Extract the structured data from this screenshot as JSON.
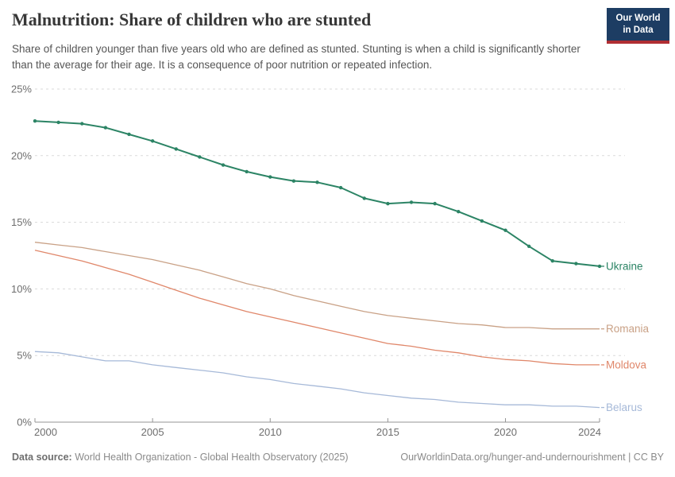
{
  "header": {
    "title": "Malnutrition: Share of children who are stunted",
    "subtitle": "Share of children younger than five years old who are defined as stunted. Stunting is when a child is significantly shorter than the average for their age. It is a consequence of poor nutrition or repeated infection.",
    "logo_line1": "Our World",
    "logo_line2": "in Data",
    "logo_bg_color": "#1d3d63",
    "logo_accent_color": "#b02e33"
  },
  "chart_data": {
    "type": "line",
    "x": [
      2000,
      2001,
      2002,
      2003,
      2004,
      2005,
      2006,
      2007,
      2008,
      2009,
      2010,
      2011,
      2012,
      2013,
      2014,
      2015,
      2016,
      2017,
      2018,
      2019,
      2020,
      2021,
      2022,
      2023,
      2024
    ],
    "series": [
      {
        "name": "Ukraine",
        "color": "#2c8465",
        "marker": true,
        "values": [
          22.6,
          22.5,
          22.4,
          22.1,
          21.6,
          21.1,
          20.5,
          19.9,
          19.3,
          18.8,
          18.4,
          18.1,
          18.0,
          17.6,
          16.8,
          16.4,
          16.5,
          16.4,
          15.8,
          15.1,
          14.4,
          13.2,
          12.1,
          11.9,
          11.7
        ]
      },
      {
        "name": "Romania",
        "color": "#c9a186",
        "marker": false,
        "values": [
          13.5,
          13.3,
          13.1,
          12.8,
          12.5,
          12.2,
          11.8,
          11.4,
          10.9,
          10.4,
          10.0,
          9.5,
          9.1,
          8.7,
          8.3,
          8.0,
          7.8,
          7.6,
          7.4,
          7.3,
          7.1,
          7.1,
          7.0,
          7.0,
          7.0
        ]
      },
      {
        "name": "Moldova",
        "color": "#e0876a",
        "marker": false,
        "values": [
          12.9,
          12.5,
          12.1,
          11.6,
          11.1,
          10.5,
          9.9,
          9.3,
          8.8,
          8.3,
          7.9,
          7.5,
          7.1,
          6.7,
          6.3,
          5.9,
          5.7,
          5.4,
          5.2,
          4.9,
          4.7,
          4.6,
          4.4,
          4.3,
          4.3
        ]
      },
      {
        "name": "Belarus",
        "color": "#a6b9d8",
        "marker": false,
        "values": [
          5.3,
          5.2,
          4.9,
          4.6,
          4.6,
          4.3,
          4.1,
          3.9,
          3.7,
          3.4,
          3.2,
          2.9,
          2.7,
          2.5,
          2.2,
          2.0,
          1.8,
          1.7,
          1.5,
          1.4,
          1.3,
          1.3,
          1.2,
          1.2,
          1.1
        ]
      }
    ],
    "xticks": [
      2000,
      2005,
      2010,
      2015,
      2020,
      2024
    ],
    "yticks": [
      0,
      5,
      10,
      15,
      20,
      25
    ],
    "ylim": [
      0,
      25
    ],
    "xlim": [
      2000,
      2024
    ],
    "ytick_suffix": "%",
    "xlabel": "",
    "ylabel": "",
    "grid": "horizontal-dashed",
    "legend_position": "end-of-line-labels"
  },
  "footer": {
    "data_source_label": "Data source:",
    "data_source_value": "World Health Organization - Global Health Observatory (2025)",
    "license": "OurWorldinData.org/hunger-and-undernourishment | CC BY"
  }
}
